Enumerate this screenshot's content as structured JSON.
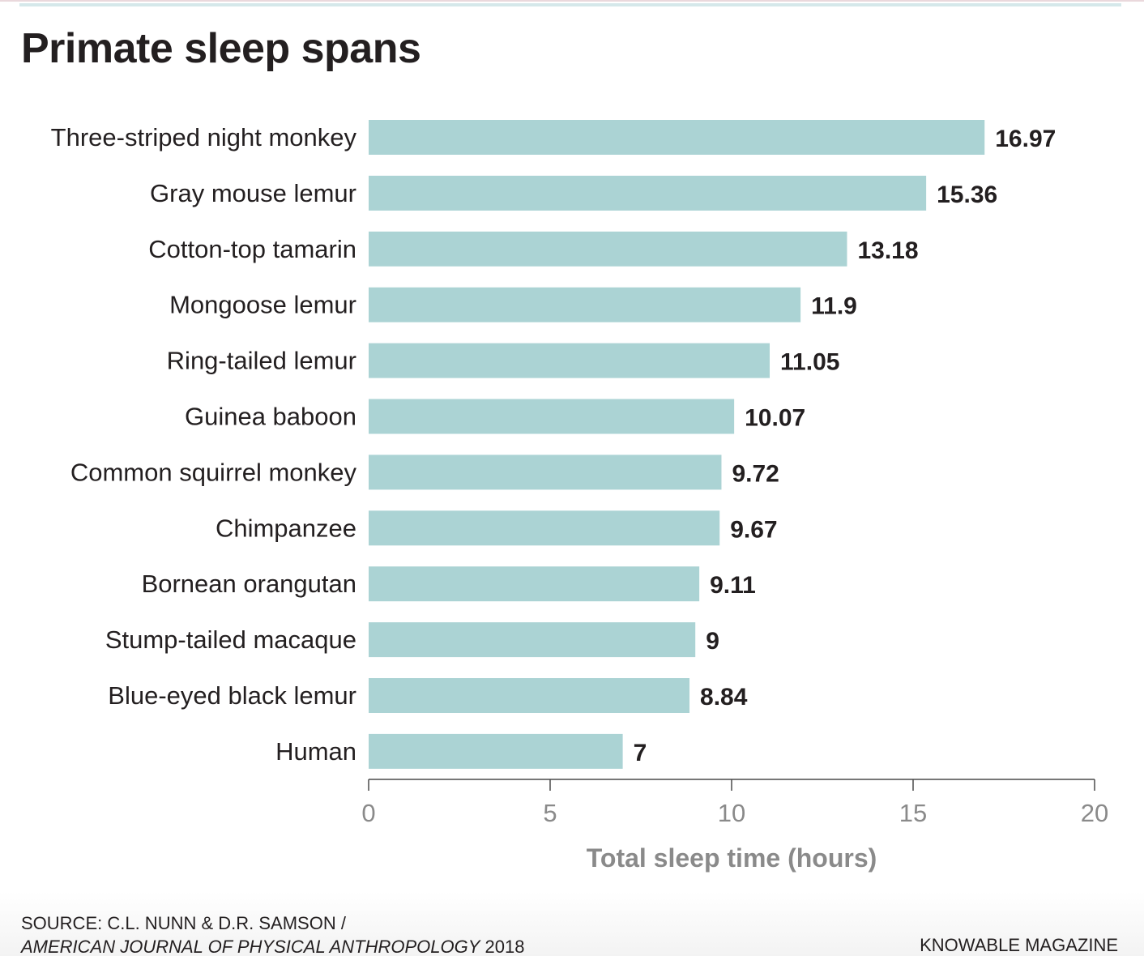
{
  "title": "Primate sleep spans",
  "colors": {
    "bar": "#abd3d4",
    "axis": "#4a4a4a",
    "muted_text": "#8a8a8a",
    "text": "#231f20"
  },
  "chart_data": {
    "type": "bar",
    "orientation": "horizontal",
    "categories": [
      "Three-striped night monkey",
      "Gray mouse lemur",
      "Cotton-top tamarin",
      "Mongoose lemur",
      "Ring-tailed lemur",
      "Guinea baboon",
      "Common squirrel monkey",
      "Chimpanzee",
      "Bornean orangutan",
      "Stump-tailed macaque",
      "Blue-eyed black lemur",
      "Human"
    ],
    "values": [
      16.97,
      15.36,
      13.18,
      11.9,
      11.05,
      10.07,
      9.72,
      9.67,
      9.11,
      9,
      8.84,
      7
    ],
    "value_labels": [
      "16.97",
      "15.36",
      "13.18",
      "11.9",
      "11.05",
      "10.07",
      "9.72",
      "9.67",
      "9.11",
      "9",
      "8.84",
      "7"
    ],
    "xlabel": "Total sleep time (hours)",
    "xlim": [
      0,
      20
    ],
    "xticks": [
      0,
      5,
      10,
      15,
      20
    ],
    "grid": false
  },
  "source": {
    "line1": "SOURCE: C.L. NUNN & D.R. SAMSON /",
    "journal": "AMERICAN JOURNAL OF PHYSICAL ANTHROPOLOGY",
    "year": " 2018"
  },
  "brand": "KNOWABLE MAGAZINE"
}
